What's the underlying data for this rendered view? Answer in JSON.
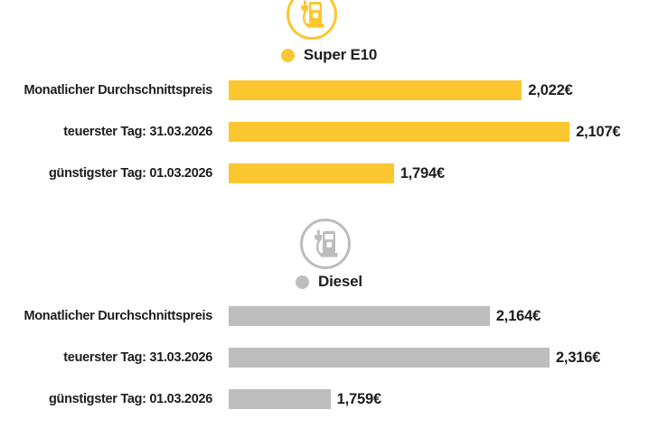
{
  "colors": {
    "super_yellow": "#FCC62E",
    "diesel_gray": "#BDBDBD",
    "text_dark": "#1D1D1B",
    "background": "#FFFFFF"
  },
  "chart_data": {
    "type": "bar",
    "orientation": "horizontal",
    "unit": "EUR per liter",
    "grid": false,
    "legend_position": "top-center-per-section",
    "sections": [
      {
        "id": "super-e10",
        "legend": "Super E10",
        "icon": "fuel-pump-icon",
        "color": "#FCC62E",
        "xlim": [
          1.5,
          2.2
        ],
        "categories": [
          "Monatlicher Durchschnittspreis",
          "teuerster Tag: 31.03.2026",
          "günstigster Tag: 01.03.2026"
        ],
        "values": [
          2.022,
          2.107,
          1.794
        ],
        "rows": [
          {
            "label": "Monatlicher Durchschnittspreis",
            "value": 2.022,
            "value_label": "2,022€"
          },
          {
            "label": "teuerster Tag: 31.03.2026",
            "value": 2.107,
            "value_label": "2,107€"
          },
          {
            "label": "günstigster Tag: 01.03.2026",
            "value": 1.794,
            "value_label": "1,794€"
          }
        ]
      },
      {
        "id": "diesel",
        "legend": "Diesel",
        "icon": "fuel-pump-icon",
        "color": "#BDBDBD",
        "xlim": [
          1.5,
          2.5
        ],
        "categories": [
          "Monatlicher Durchschnittspreis",
          "teuerster Tag: 31.03.2026",
          "günstigster Tag: 01.03.2026"
        ],
        "values": [
          2.164,
          2.316,
          1.759
        ],
        "rows": [
          {
            "label": "Monatlicher Durchschnittspreis",
            "value": 2.164,
            "value_label": "2,164€"
          },
          {
            "label": "teuerster Tag: 31.03.2026",
            "value": 2.316,
            "value_label": "2,316€"
          },
          {
            "label": "günstigster Tag: 01.03.2026",
            "value": 1.759,
            "value_label": "1,759€"
          }
        ]
      }
    ]
  }
}
